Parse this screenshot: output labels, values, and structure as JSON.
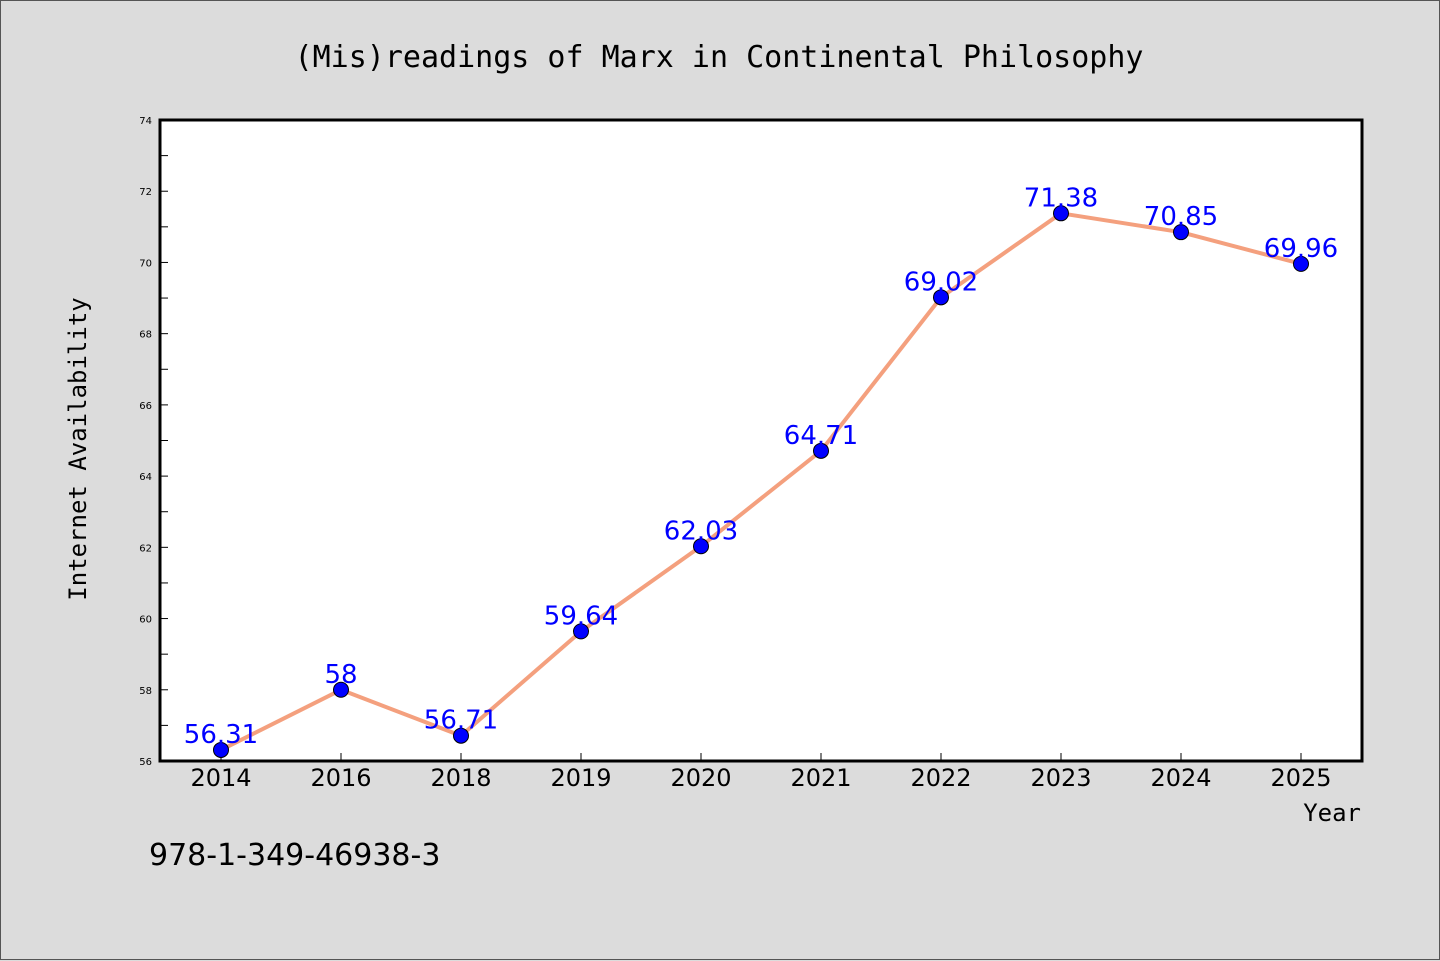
{
  "chart_data": {
    "type": "line",
    "title": "(Mis)readings of Marx in Continental Philosophy",
    "xlabel": "Year",
    "ylabel": "Internet Availability",
    "categories": [
      "2014",
      "2016",
      "2018",
      "2019",
      "2020",
      "2021",
      "2022",
      "2023",
      "2024",
      "2025"
    ],
    "series": [
      {
        "values": [
          56.31,
          58,
          56.71,
          59.64,
          62.03,
          64.71,
          69.02,
          71.38,
          70.85,
          69.96
        ],
        "labels": [
          "56.31",
          "58",
          "56.71",
          "59.64",
          "62.03",
          "64.71",
          "69.02",
          "71.38",
          "70.85",
          "69.96"
        ],
        "line_color": "#f4a07e",
        "marker_color": "#0000ff"
      }
    ],
    "ylim": [
      56,
      74
    ],
    "yticks": [
      "56",
      "58",
      "60",
      "62",
      "64",
      "66",
      "68",
      "70",
      "72",
      "74"
    ],
    "grid": false,
    "legend": false
  },
  "footer": {
    "isbn": "978-1-349-46938-3"
  }
}
